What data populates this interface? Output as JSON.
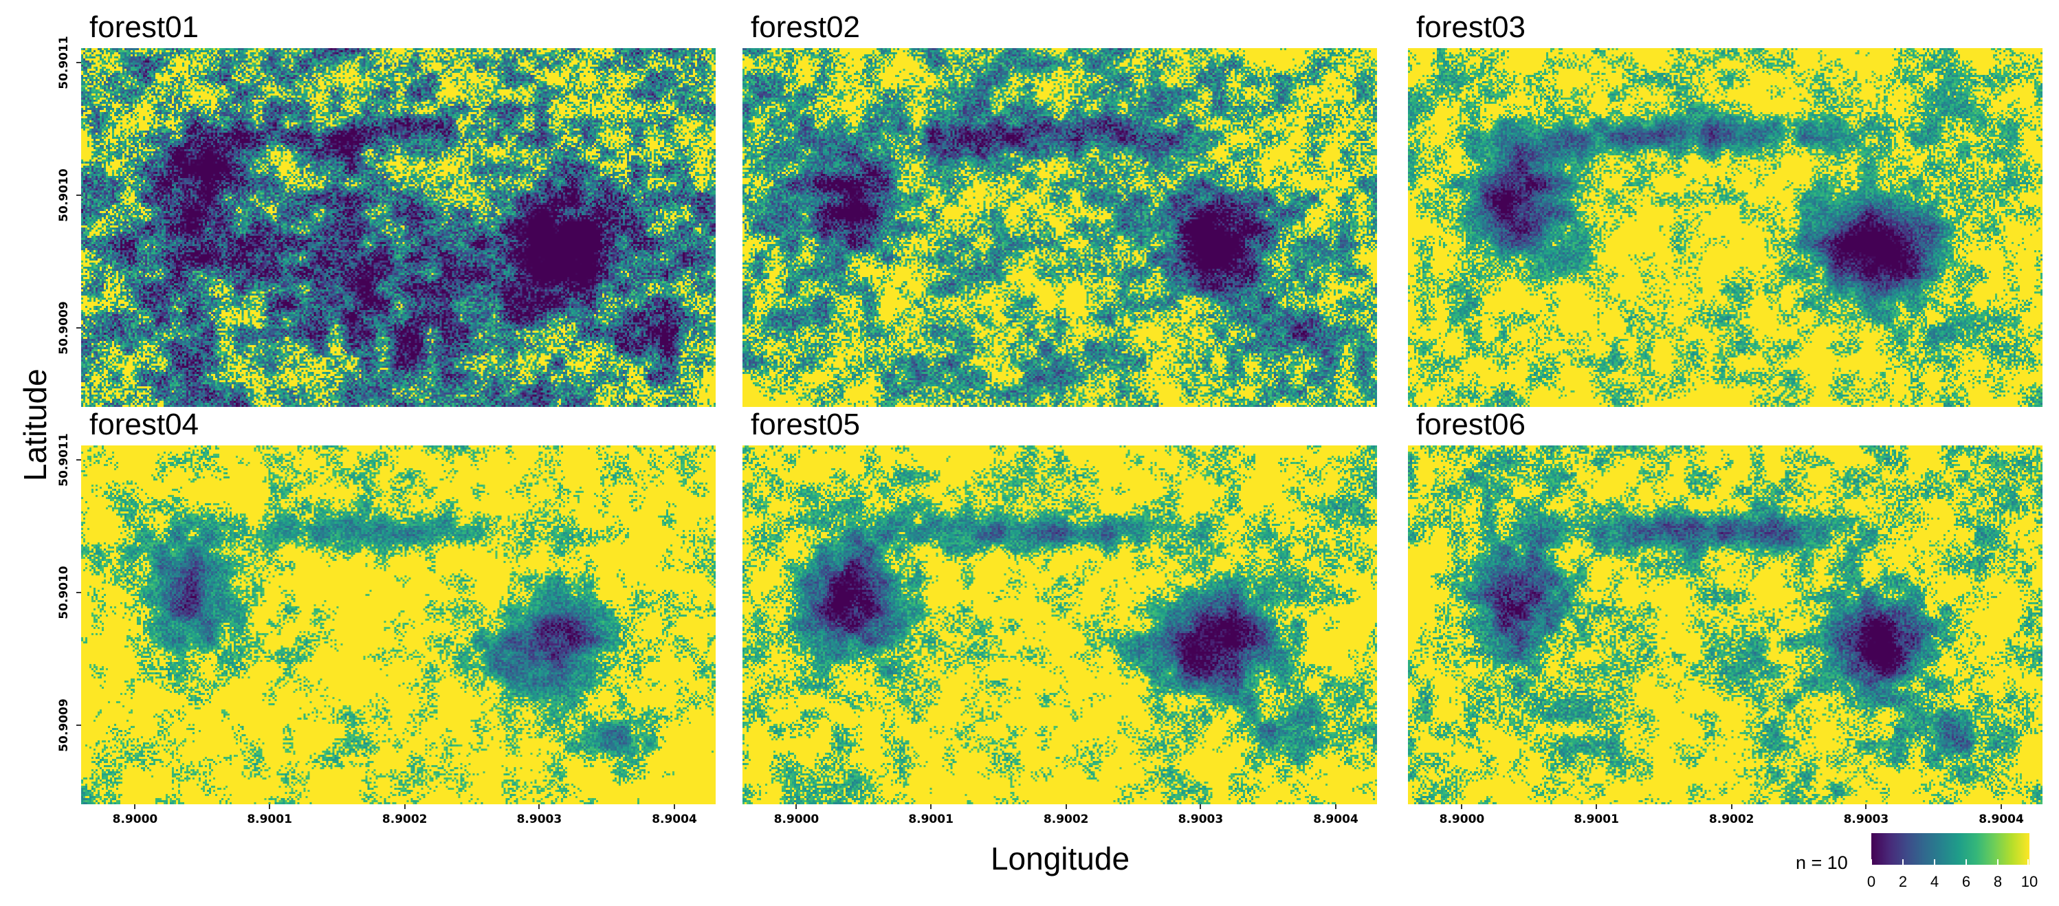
{
  "axes": {
    "xlabel": "Longitude",
    "ylabel": "Latitude",
    "xticks": [
      "8.9000",
      "8.9001",
      "8.9002",
      "8.9003",
      "8.9004"
    ],
    "yticks": [
      "50.9011",
      "50.9010",
      "50.9009"
    ]
  },
  "panels": [
    {
      "title": "forest01"
    },
    {
      "title": "forest02"
    },
    {
      "title": "forest03"
    },
    {
      "title": "forest04"
    },
    {
      "title": "forest05"
    },
    {
      "title": "forest06"
    }
  ],
  "legend": {
    "title": "n = 10",
    "labels": [
      "0",
      "2",
      "4",
      "6",
      "8",
      "10"
    ],
    "colormap": [
      "#440154",
      "#482878",
      "#3e4a89",
      "#31688e",
      "#26828e",
      "#1f9e89",
      "#35b779",
      "#6ece58",
      "#b5de2b",
      "#fde725"
    ],
    "range": [
      0,
      10
    ]
  }
}
